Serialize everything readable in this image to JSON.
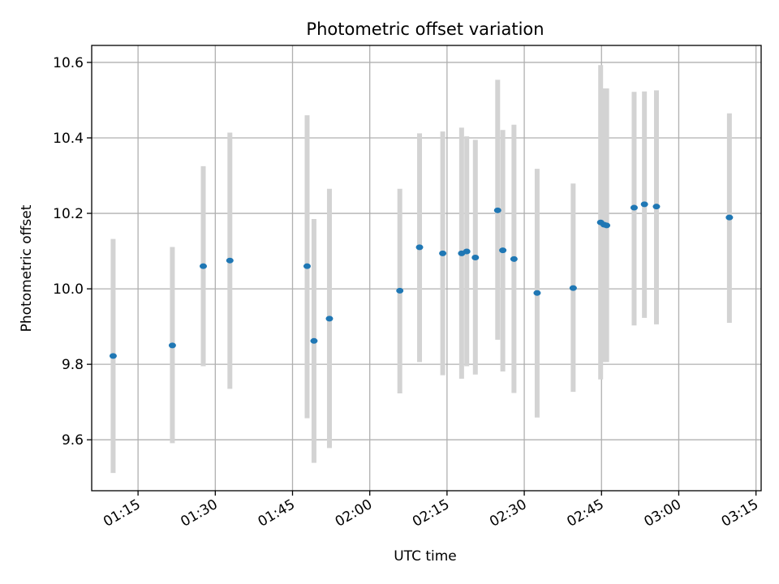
{
  "chart_data": {
    "type": "scatter",
    "title": "Photometric offset variation",
    "xlabel": "UTC time",
    "ylabel": "Photometric offset",
    "xlim": [
      "01:06:00",
      "03:16:00"
    ],
    "ylim": [
      9.465,
      10.645
    ],
    "x_ticks": [
      "01:15",
      "01:30",
      "01:45",
      "02:00",
      "02:15",
      "02:30",
      "02:45",
      "03:00",
      "03:15"
    ],
    "y_ticks": [
      "9.6",
      "9.8",
      "10.0",
      "10.2",
      "10.4",
      "10.6"
    ],
    "grid": true,
    "series": [
      {
        "x": [
          "01:10:10",
          "01:21:40",
          "01:27:40",
          "01:32:50",
          "01:47:50",
          "01:49:10",
          "01:52:10",
          "02:05:50",
          "02:09:40",
          "02:14:10",
          "02:17:50",
          "02:18:50",
          "02:20:30",
          "02:24:50",
          "02:25:50",
          "02:28:00",
          "02:32:30",
          "02:39:30",
          "02:44:50",
          "02:45:30",
          "02:46:00",
          "02:51:20",
          "02:53:20",
          "02:55:40",
          "03:09:50"
        ],
        "y": [
          9.822,
          9.85,
          10.06,
          10.075,
          10.06,
          9.862,
          9.921,
          9.995,
          10.11,
          10.094,
          10.094,
          10.099,
          10.083,
          10.208,
          10.102,
          10.079,
          9.989,
          10.002,
          10.176,
          10.17,
          10.168,
          10.215,
          10.224,
          10.218,
          10.189
        ],
        "err_low": [
          9.512,
          9.591,
          9.795,
          9.735,
          9.657,
          9.539,
          9.578,
          9.723,
          9.806,
          9.771,
          9.762,
          9.795,
          9.773,
          9.865,
          9.781,
          9.724,
          9.659,
          9.727,
          9.76,
          9.806,
          9.806,
          9.903,
          9.923,
          9.906,
          9.91
        ],
        "err_high": [
          10.132,
          10.111,
          10.325,
          10.414,
          10.46,
          10.185,
          10.265,
          10.265,
          10.412,
          10.417,
          10.427,
          10.404,
          10.395,
          10.554,
          10.421,
          10.435,
          10.318,
          10.279,
          10.593,
          10.531,
          10.531,
          10.522,
          10.523,
          10.526,
          10.465
        ]
      }
    ],
    "colors": {
      "point": "#1f77b4",
      "errorbar": "#d3d3d3"
    }
  }
}
